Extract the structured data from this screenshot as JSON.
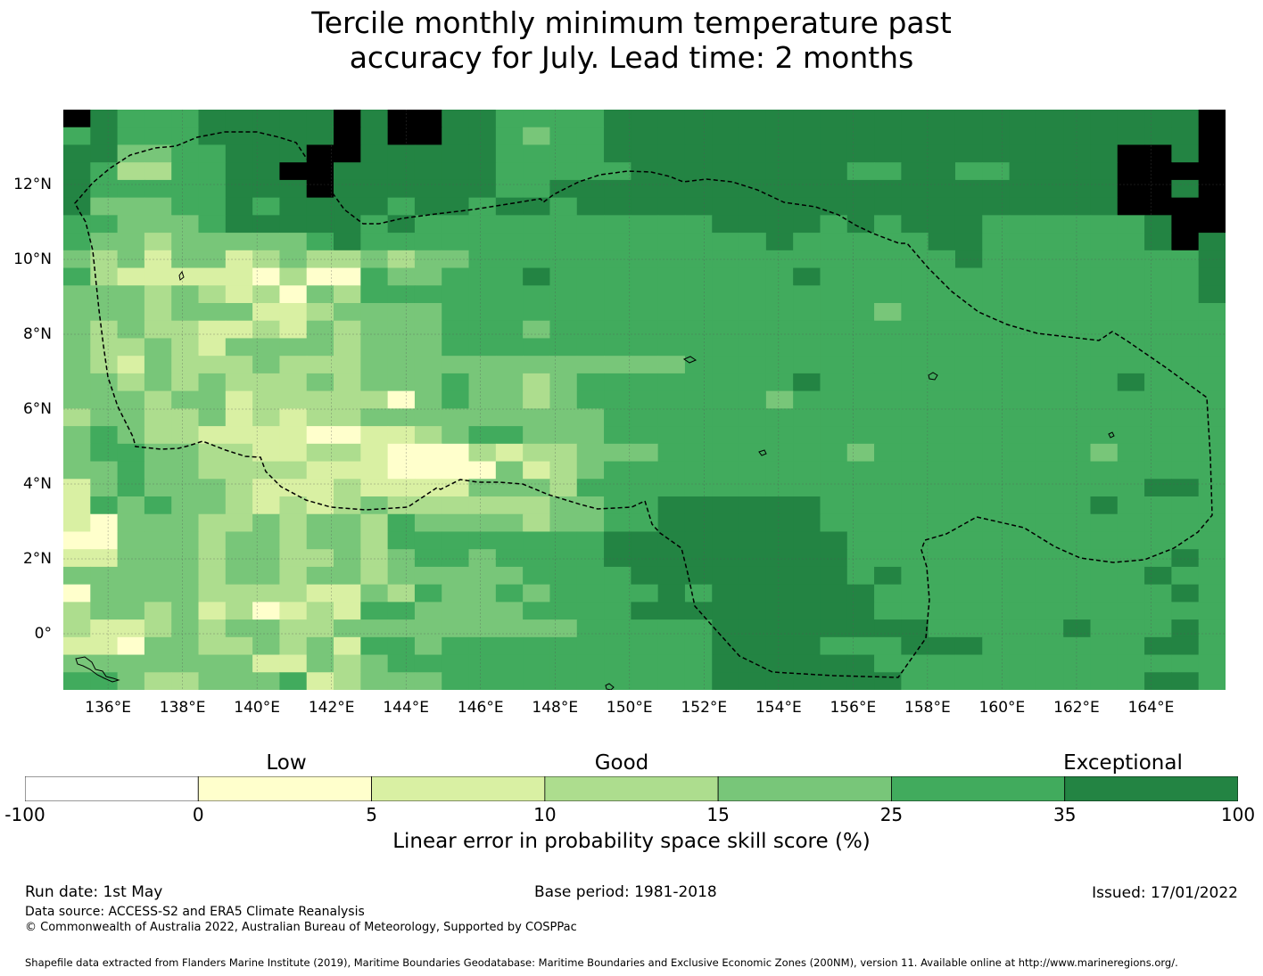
{
  "title": {
    "line1": "Tercile monthly minimum temperature past",
    "line2": "accuracy for July. Lead time: 2 months"
  },
  "map": {
    "lon_ticks": [
      "136°E",
      "138°E",
      "140°E",
      "142°E",
      "144°E",
      "146°E",
      "148°E",
      "150°E",
      "152°E",
      "154°E",
      "156°E",
      "158°E",
      "160°E",
      "162°E",
      "164°E"
    ],
    "lat_ticks": [
      "12°N",
      "10°N",
      "8°N",
      "6°N",
      "4°N",
      "2°N",
      "0°"
    ],
    "grid": [
      "7655566666767766555566666666666666666666667",
      "5655566666767766545566666666666666666666667",
      "6644556667766666555566666666666666666667767",
      "6533556677666666555556666666655665566667777",
      "6555556667666666556666666666666666666667767",
      "6444556566665665665666666666666666666667777",
      "5544456666656555555555556666565666555555677",
      "5443444445655555555555555565555566555555676",
      "4342442343343445555555555555555556555555556",
      "5322222131154455565555555556555555555555556",
      "4443432314355555555555555555555555555555556",
      "4443444223444455555555555555554555555555555",
      "4343322324344455545555555555555555555555555",
      "4334324444344455555555555555555555555555555",
      "4324333433344444444444455555555555555555555",
      "4434343334344454434555555556555555555556555",
      "4443442333331454434555555545555555555555555",
      "3443342323344444444455555555555555555555555",
      "4543322221122345544455555555555555555555555",
      "4554433223321113233444555555545555555545555",
      "4454433332221111423455555555555555555555555",
      "2454443222322224443555555555555555555555665",
      "2545443232343333334455666666555555555565555",
      "2144433434435444434455666666555555555555555",
      "1144434434435555555566666666655555555555555",
      "2244434433434554555566666666655555555555565",
      "4444434434434444455556666666656555555555655",
      "1444433332243544545555656666665555555555565",
      "3443423123255444455556666666665555555555555",
      "3223434433444444444555556666666655555655565",
      "2214433434255455555555556666555666555555665",
      "4444444224345555555555556666665555555555555",
      "5543344452344455555555556666666555555555665"
    ],
    "eez_outline": "Exclusive Economic Zone boundary"
  },
  "colorbar": {
    "colors": [
      "#ffffff",
      "#ffffcc",
      "#d9f0a3",
      "#addd8e",
      "#78c679",
      "#41ab5d",
      "#238443"
    ],
    "ticks": [
      "-100",
      "0",
      "5",
      "10",
      "15",
      "25",
      "35",
      "100"
    ],
    "categories": [
      "Low",
      "Good",
      "Exceptional"
    ],
    "label": "Linear error in probability space skill score (%)"
  },
  "footer": {
    "run_date": "Run date: 1st May",
    "base_period": "Base period: 1981-2018",
    "issued": "Issued: 17/01/2022",
    "data_source": "Data source: ACCESS-S2 and ERA5 Climate Reanalysis",
    "copyright": "© Commonwealth of Australia 2022, Australian Bureau of Meteorology, Supported by COSPPac",
    "shapefile": "Shapefile data extracted from Flanders Marine Institute (2019), Maritime Boundaries Geodatabase: Maritime Boundaries and Exclusive Economic Zones (200NM), version 11. Available online at http://www.marineregions.org/."
  }
}
